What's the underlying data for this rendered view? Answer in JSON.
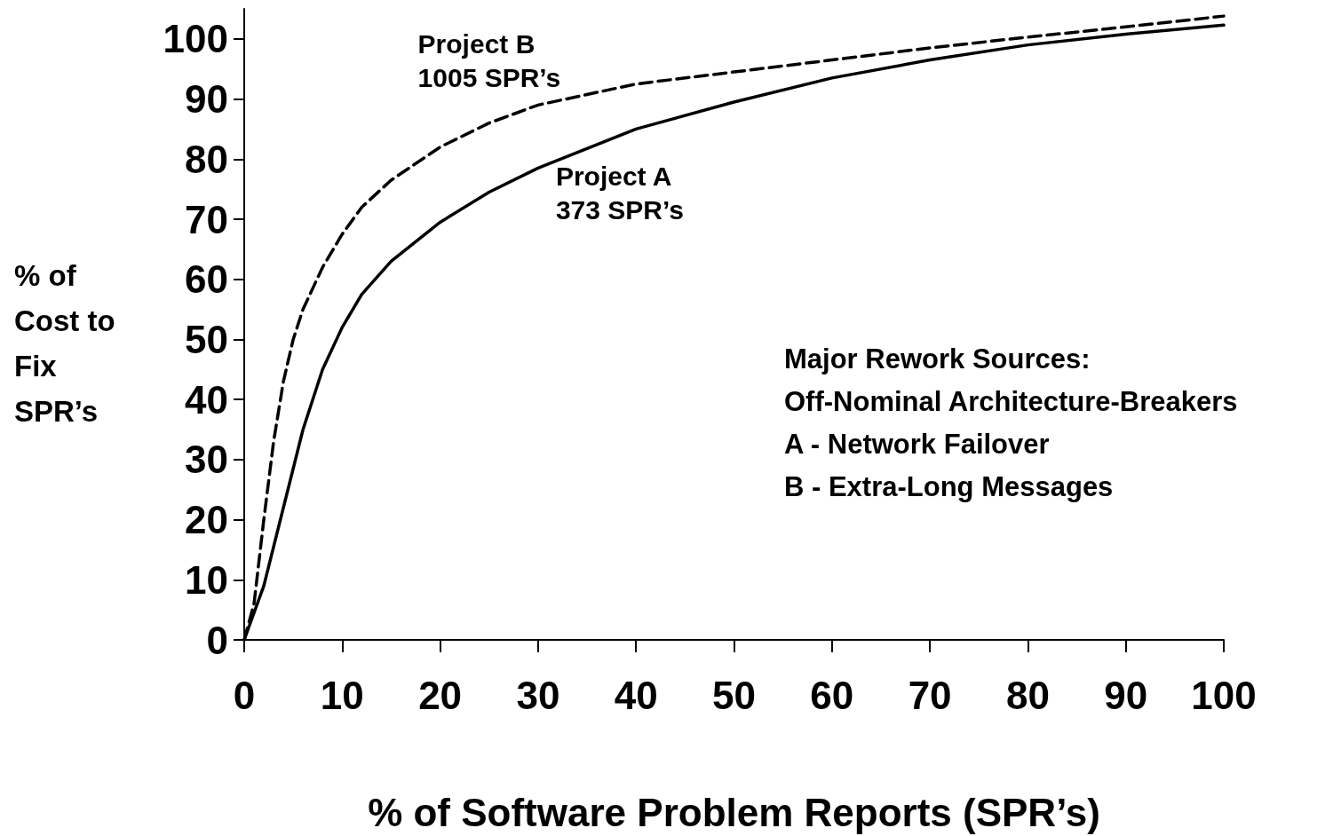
{
  "chart_data": {
    "type": "line",
    "xlabel": "% of Software Problem Reports (SPR’s)",
    "ylabel": "% of Cost to Fix SPR’s",
    "xlim": [
      0,
      100
    ],
    "xticks": [
      0,
      10,
      20,
      30,
      40,
      50,
      60,
      70,
      80,
      90,
      100
    ],
    "ylim": [
      0,
      105
    ],
    "yticks": [
      0,
      10,
      20,
      30,
      40,
      50,
      60,
      70,
      80,
      90,
      100
    ],
    "grid": false,
    "legend": false,
    "marker": "none",
    "series": [
      {
        "name": "Project A\n373 SPR’s",
        "color": "#000000",
        "line_style": "solid",
        "x": [
          0,
          2,
          4,
          6,
          8,
          10,
          12,
          15,
          20,
          25,
          30,
          40,
          50,
          60,
          70,
          80,
          90,
          100
        ],
        "values": [
          0,
          9,
          22,
          35,
          45,
          52,
          57.5,
          63,
          69.5,
          74.5,
          78.5,
          85,
          89.5,
          93.5,
          96.5,
          99,
          100.8,
          102.3
        ]
      },
      {
        "name": "Project B\n1005 SPR’s",
        "color": "#000000",
        "line_style": "dashed",
        "x": [
          0,
          1,
          2,
          3,
          4,
          5,
          6,
          8,
          10,
          12,
          15,
          20,
          25,
          30,
          40,
          50,
          60,
          70,
          80,
          90,
          100
        ],
        "values": [
          0,
          6,
          20,
          33,
          43,
          50,
          55,
          62,
          67.5,
          72,
          76.5,
          82,
          86,
          89,
          92.5,
          94.5,
          96.5,
          98.5,
          100.3,
          102,
          103.8
        ]
      }
    ],
    "annotations": [
      "Major Rework Sources:",
      "Off-Nominal Architecture-Breakers",
      "A - Network Failover",
      "B - Extra-Long Messages"
    ]
  }
}
